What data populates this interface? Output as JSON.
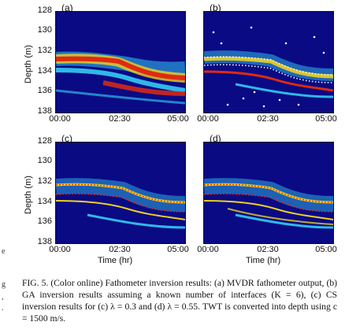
{
  "panels": [
    {
      "id": "a",
      "letter": "(a)"
    },
    {
      "id": "b",
      "letter": "(b)"
    },
    {
      "id": "c",
      "letter": "(c)"
    },
    {
      "id": "d",
      "letter": "(d)"
    }
  ],
  "axis": {
    "y_ticks": [
      "128",
      "130",
      "132",
      "134",
      "136",
      "138"
    ],
    "x_ticks": [
      "00:00",
      "02:30",
      "05:00"
    ],
    "ylabel": "Depth (m)",
    "xlabel": "Time (hr)"
  },
  "caption": {
    "text": "FIG. 5. (Color online) Fathometer inversion results: (a) MVDR fathometer output, (b) GA inversion results assuming a known number of interfaces (K = 6), (c) CS inversion results for (c) λ = 0.3 and (d) λ = 0.55. TWT is converted into depth using c = 1500 m/s."
  },
  "margin_fragments": [
    "e",
    "g",
    ",",
    "."
  ],
  "colors": {
    "background": "#0a0a84",
    "strong": "#e02a10",
    "mid": "#f0d020",
    "low": "#2fb8e8",
    "marker": "#ffffff"
  }
}
